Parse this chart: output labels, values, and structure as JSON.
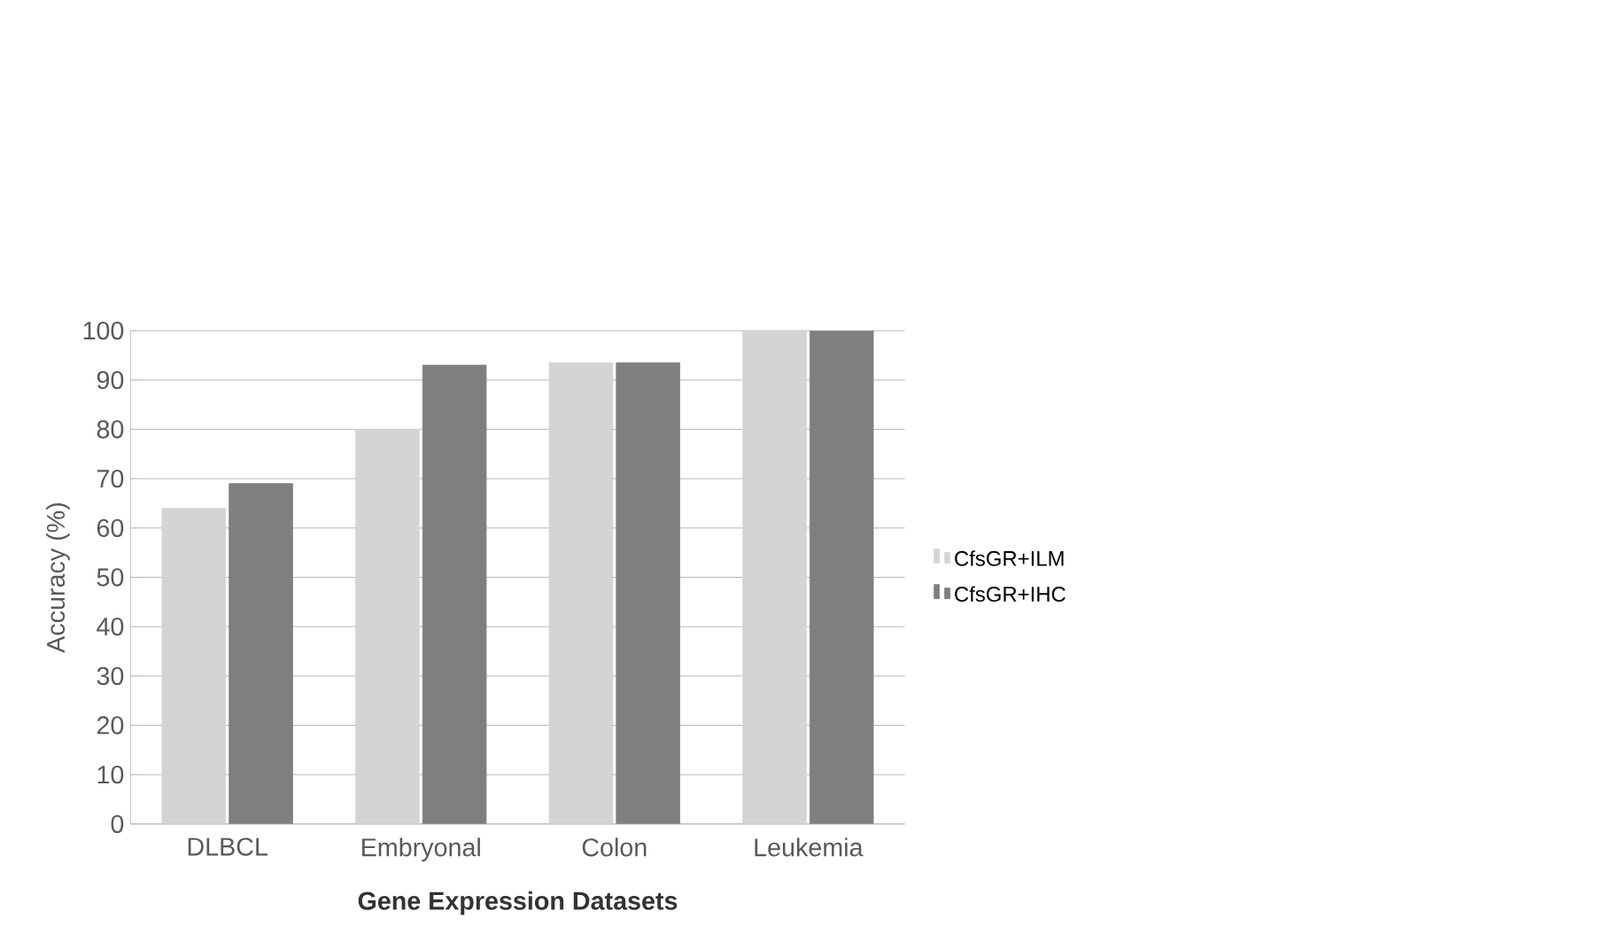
{
  "chart_data": {
    "type": "bar",
    "xlabel": "Gene Expression Datasets",
    "ylabel": "Accuracy (%)",
    "categories": [
      "DLBCL",
      "Embryonal",
      "Colon",
      "Leukemia"
    ],
    "series": [
      {
        "name": "CfsGR+ILM",
        "color": "#d4d4d4",
        "values": [
          64,
          80,
          93.5,
          100
        ]
      },
      {
        "name": "CfsGR+IHC",
        "color": "#7f7f7f",
        "values": [
          69,
          93,
          93.5,
          100
        ]
      }
    ],
    "ylim": [
      0,
      100
    ],
    "yticks": [
      0,
      10,
      20,
      30,
      40,
      50,
      60,
      70,
      80,
      90,
      100
    ],
    "grid": "y",
    "legend": "right"
  }
}
